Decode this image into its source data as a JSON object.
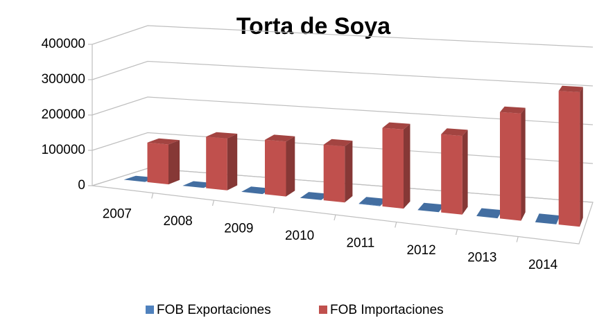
{
  "chart_data": {
    "type": "bar3d",
    "title": "Torta de Soya",
    "categories": [
      "2007",
      "2008",
      "2009",
      "2010",
      "2011",
      "2012",
      "2013",
      "2014"
    ],
    "series": [
      {
        "name": "FOB Exportaciones",
        "color": "#4f81bd",
        "values": [
          0,
          0,
          0,
          0,
          1000,
          0,
          0,
          0
        ]
      },
      {
        "name": "FOB Importaciones",
        "color": "#c0504d",
        "values": [
          110000,
          140000,
          145000,
          145000,
          200000,
          195000,
          260000,
          320000
        ]
      }
    ],
    "ylim": [
      0,
      400000
    ],
    "yticks": [
      0,
      100000,
      200000,
      300000,
      400000
    ],
    "grid": true,
    "legend": "bottom"
  }
}
